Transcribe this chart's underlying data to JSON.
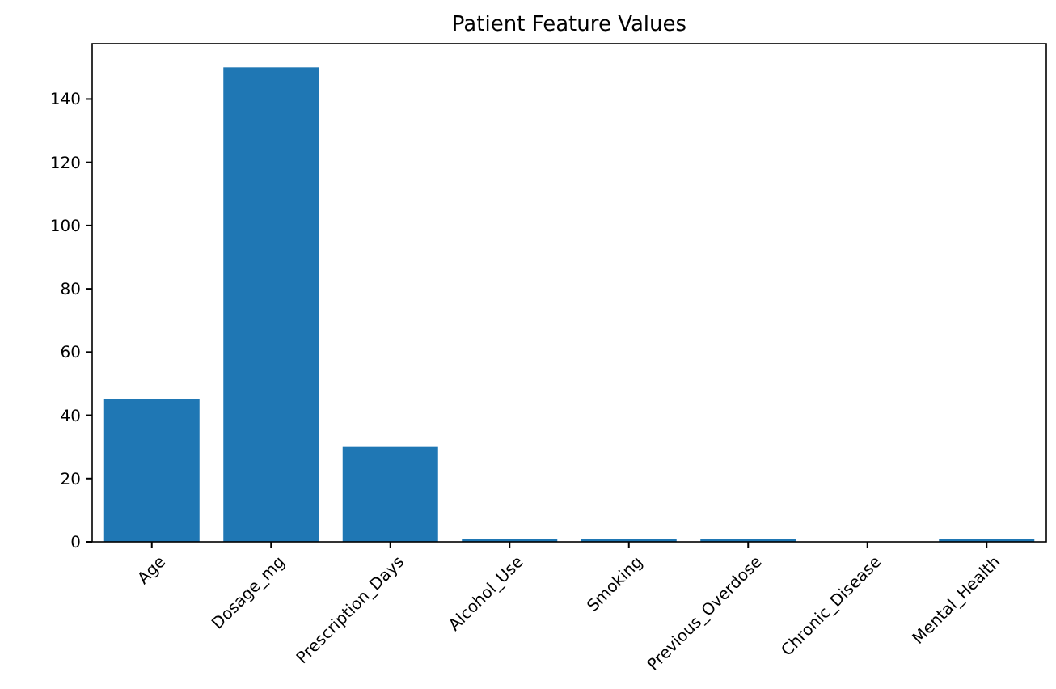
{
  "chart_data": {
    "type": "bar",
    "title": "Patient Feature Values",
    "categories": [
      "Age",
      "Dosage_mg",
      "Prescription_Days",
      "Alcohol_Use",
      "Smoking",
      "Previous_Overdose",
      "Chronic_Disease",
      "Mental_Health"
    ],
    "values": [
      45,
      150,
      30,
      1,
      1,
      1,
      0,
      1
    ],
    "color": "#1f77b4",
    "ylim": [
      0,
      157.5
    ],
    "yticks": [
      0,
      20,
      40,
      60,
      80,
      100,
      120,
      140
    ],
    "grid": false
  }
}
